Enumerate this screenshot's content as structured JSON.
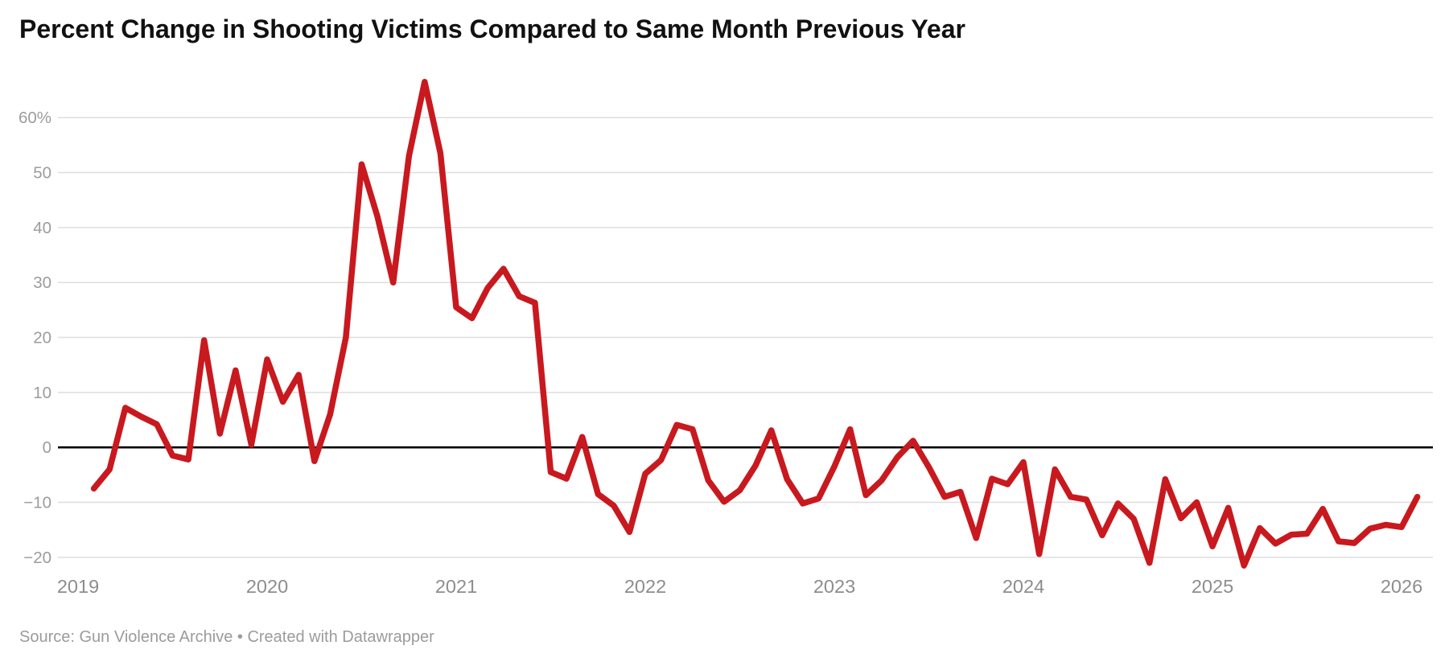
{
  "header": {
    "title": "Percent Change in Shooting Victims Compared to Same Month Previous Year"
  },
  "footer": {
    "source_line": "Source: Gun Violence Archive • Created with Datawrapper"
  },
  "chart_data": {
    "type": "line",
    "title": "Percent Change in Shooting Victims Compared to Same Month Previous Year",
    "xlabel": "",
    "ylabel": "",
    "unit": "%",
    "ylim": [
      -20,
      60
    ],
    "grid": "horizontal",
    "legend": "none",
    "line_color": "#c8191f",
    "grid_color": "#dedede",
    "zero_line_color": "#000000",
    "x_axis": {
      "years": [
        "2019",
        "2020",
        "2021",
        "2022",
        "2023",
        "2024",
        "2025",
        "2026"
      ]
    },
    "y_axis": {
      "ticks": [
        {
          "value": -20,
          "label": "−20"
        },
        {
          "value": -10,
          "label": "−10"
        },
        {
          "value": 0,
          "label": "0"
        },
        {
          "value": 10,
          "label": "10"
        },
        {
          "value": 20,
          "label": "20"
        },
        {
          "value": 30,
          "label": "30"
        },
        {
          "value": 40,
          "label": "40"
        },
        {
          "value": 50,
          "label": "50"
        },
        {
          "value": 60,
          "label": "60%"
        }
      ]
    },
    "x": [
      "2019-02",
      "2019-03",
      "2019-04",
      "2019-05",
      "2019-06",
      "2019-07",
      "2019-08",
      "2019-09",
      "2019-10",
      "2019-11",
      "2019-12",
      "2020-01",
      "2020-02",
      "2020-03",
      "2020-04",
      "2020-05",
      "2020-06",
      "2020-07",
      "2020-08",
      "2020-09",
      "2020-10",
      "2020-11",
      "2020-12",
      "2021-01",
      "2021-02",
      "2021-03",
      "2021-04",
      "2021-05",
      "2021-06",
      "2021-07",
      "2021-08",
      "2021-09",
      "2021-10",
      "2021-11",
      "2021-12",
      "2022-01",
      "2022-02",
      "2022-03",
      "2022-04",
      "2022-05",
      "2022-06",
      "2022-07",
      "2022-08",
      "2022-09",
      "2022-10",
      "2022-11",
      "2022-12",
      "2023-01",
      "2023-02",
      "2023-03",
      "2023-04",
      "2023-05",
      "2023-06",
      "2023-07",
      "2023-08",
      "2023-09",
      "2023-10",
      "2023-11",
      "2023-12",
      "2024-01",
      "2024-02",
      "2024-03",
      "2024-04",
      "2024-05",
      "2024-06",
      "2024-07",
      "2024-08",
      "2024-09",
      "2024-10",
      "2024-11",
      "2024-12",
      "2025-01",
      "2025-02",
      "2025-03",
      "2025-04",
      "2025-05",
      "2025-06",
      "2025-07",
      "2025-08",
      "2025-09",
      "2025-10",
      "2025-11",
      "2025-12",
      "2026-01",
      "2026-02"
    ],
    "values": [
      -7.5,
      -4.0,
      7.2,
      5.6,
      4.2,
      -1.5,
      -2.2,
      19.5,
      2.5,
      14.0,
      0.5,
      16.0,
      8.3,
      13.2,
      -2.5,
      6.0,
      20.0,
      51.5,
      42.0,
      30.0,
      53.0,
      66.5,
      53.5,
      25.5,
      23.5,
      29.0,
      32.5,
      27.5,
      26.3,
      -4.5,
      -5.7,
      1.9,
      -8.5,
      -10.6,
      -15.4,
      -4.8,
      -2.3,
      4.1,
      3.3,
      -6.0,
      -9.9,
      -7.8,
      -3.3,
      3.1,
      -5.8,
      -10.2,
      -9.3,
      -3.5,
      3.3,
      -8.7,
      -6.0,
      -1.8,
      1.2,
      -3.6,
      -9.0,
      -8.1,
      -16.5,
      -5.7,
      -6.7,
      -2.7,
      -19.4,
      -4.0,
      -9.0,
      -9.5,
      -16.0,
      -10.2,
      -13.0,
      -21.0,
      -5.8,
      -12.9,
      -10.0,
      -18.0,
      -11.0,
      -21.5,
      -14.7,
      -17.5,
      -15.9,
      -15.7,
      -11.2,
      -17.1,
      -17.4,
      -14.8,
      -14.1,
      -14.5,
      -9.0
    ]
  }
}
